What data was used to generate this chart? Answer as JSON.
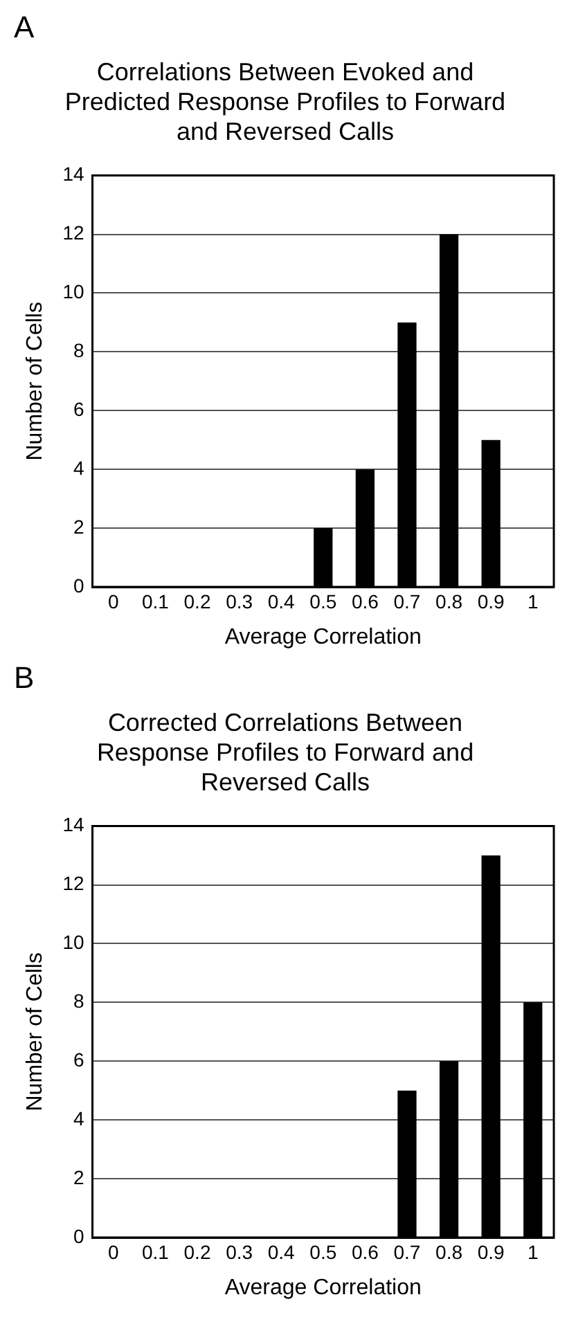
{
  "chart_data": [
    {
      "type": "bar",
      "title": "Correlations Between Evoked and Predicted Response Profiles to Forward and Reversed Calls",
      "xlabel": "Average Correlation",
      "ylabel": "Number of Cells",
      "annotations": [
        "A"
      ],
      "categories": [
        "0",
        "0.1",
        "0.2",
        "0.3",
        "0.4",
        "0.5",
        "0.6",
        "0.7",
        "0.8",
        "0.9",
        "1"
      ],
      "values": [
        0,
        0,
        0,
        0,
        0,
        2,
        4,
        9,
        12,
        5,
        0
      ],
      "color": "#000000",
      "ylim": [
        0,
        14
      ],
      "yticks": [
        0,
        2,
        4,
        6,
        8,
        10,
        12,
        14
      ],
      "grid": "y",
      "legend": false
    },
    {
      "type": "bar",
      "title": "Corrected Correlations Between Response Profiles to Forward and Reversed Calls",
      "xlabel": "Average Correlation",
      "ylabel": "Number of Cells",
      "annotations": [
        "B"
      ],
      "categories": [
        "0",
        "0.1",
        "0.2",
        "0.3",
        "0.4",
        "0.5",
        "0.6",
        "0.7",
        "0.8",
        "0.9",
        "1"
      ],
      "values": [
        0,
        0,
        0,
        0,
        0,
        0,
        0,
        5,
        6,
        13,
        8
      ],
      "color": "#000000",
      "ylim": [
        0,
        14
      ],
      "yticks": [
        0,
        2,
        4,
        6,
        8,
        10,
        12,
        14
      ],
      "grid": "y",
      "legend": false
    }
  ]
}
